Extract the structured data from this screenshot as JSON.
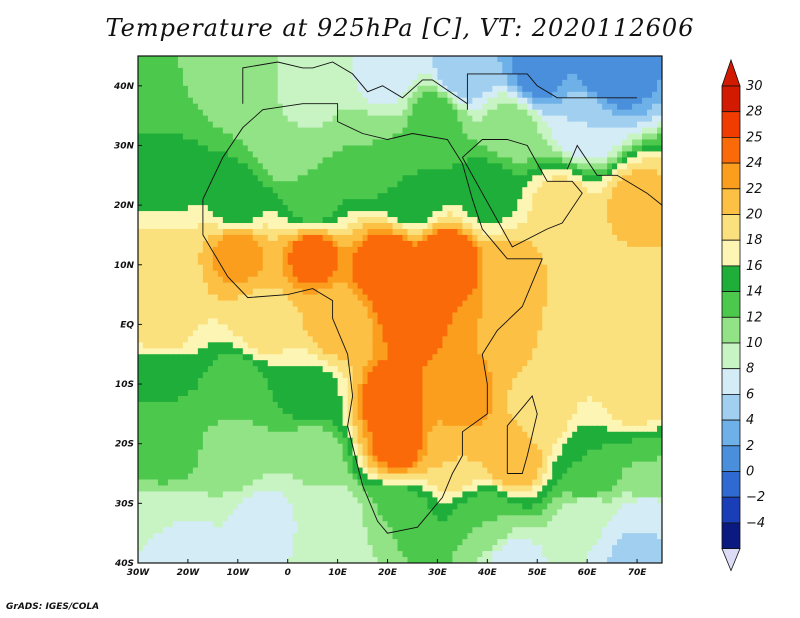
{
  "title": "Temperature at 925hPa [C], VT: 2020112606",
  "credit": "GrADS: IGES/COLA",
  "map": {
    "lon_range": [
      -30,
      75
    ],
    "lat_range": [
      -40,
      45
    ],
    "lon_ticks": [
      {
        "value": -30,
        "label": "30W"
      },
      {
        "value": -20,
        "label": "20W"
      },
      {
        "value": -10,
        "label": "10W"
      },
      {
        "value": 0,
        "label": "0"
      },
      {
        "value": 10,
        "label": "10E"
      },
      {
        "value": 20,
        "label": "20E"
      },
      {
        "value": 30,
        "label": "30E"
      },
      {
        "value": 40,
        "label": "40E"
      },
      {
        "value": 50,
        "label": "50E"
      },
      {
        "value": 60,
        "label": "60E"
      },
      {
        "value": 70,
        "label": "70E"
      }
    ],
    "lat_ticks": [
      {
        "value": 40,
        "label": "40N"
      },
      {
        "value": 30,
        "label": "30N"
      },
      {
        "value": 20,
        "label": "20N"
      },
      {
        "value": 10,
        "label": "10N"
      },
      {
        "value": 0,
        "label": "EQ"
      },
      {
        "value": -10,
        "label": "10S"
      },
      {
        "value": -20,
        "label": "20S"
      },
      {
        "value": -30,
        "label": "30S"
      },
      {
        "value": -40,
        "label": "40S"
      }
    ],
    "field": [
      {
        "lon": -25,
        "lat": 40,
        "v": 14
      },
      {
        "lon": -10,
        "lat": 40,
        "v": 13
      },
      {
        "lon": 5,
        "lat": 40,
        "v": 11
      },
      {
        "lon": 20,
        "lat": 42,
        "v": 9
      },
      {
        "lon": 35,
        "lat": 42,
        "v": 6
      },
      {
        "lon": 50,
        "lat": 42,
        "v": 3
      },
      {
        "lon": 65,
        "lat": 42,
        "v": 2
      },
      {
        "lon": 30,
        "lat": 35,
        "v": 15
      },
      {
        "lon": 45,
        "lat": 33,
        "v": 13
      },
      {
        "lon": 60,
        "lat": 33,
        "v": 8
      },
      {
        "lon": 0,
        "lat": 30,
        "v": 12
      },
      {
        "lon": 15,
        "lat": 28,
        "v": 14
      },
      {
        "lon": -25,
        "lat": 25,
        "v": 17
      },
      {
        "lon": -10,
        "lat": 20,
        "v": 17
      },
      {
        "lon": 5,
        "lat": 20,
        "v": 15
      },
      {
        "lon": 25,
        "lat": 22,
        "v": 16
      },
      {
        "lon": 40,
        "lat": 22,
        "v": 17
      },
      {
        "lon": 55,
        "lat": 20,
        "v": 21
      },
      {
        "lon": 70,
        "lat": 20,
        "v": 23
      },
      {
        "lon": -25,
        "lat": 10,
        "v": 21
      },
      {
        "lon": -10,
        "lat": 12,
        "v": 25
      },
      {
        "lon": 5,
        "lat": 12,
        "v": 26
      },
      {
        "lon": 20,
        "lat": 10,
        "v": 27
      },
      {
        "lon": 32,
        "lat": 10,
        "v": 28
      },
      {
        "lon": 45,
        "lat": 8,
        "v": 23
      },
      {
        "lon": 60,
        "lat": 8,
        "v": 21
      },
      {
        "lon": 70,
        "lat": 5,
        "v": 21
      },
      {
        "lon": -25,
        "lat": 0,
        "v": 21
      },
      {
        "lon": -5,
        "lat": 0,
        "v": 21
      },
      {
        "lon": 10,
        "lat": 0,
        "v": 23
      },
      {
        "lon": 25,
        "lat": 2,
        "v": 26
      },
      {
        "lon": 40,
        "lat": 0,
        "v": 24
      },
      {
        "lon": 60,
        "lat": -2,
        "v": 21
      },
      {
        "lon": -25,
        "lat": -10,
        "v": 16
      },
      {
        "lon": -10,
        "lat": -10,
        "v": 15
      },
      {
        "lon": 5,
        "lat": -12,
        "v": 17
      },
      {
        "lon": 20,
        "lat": -13,
        "v": 26
      },
      {
        "lon": 35,
        "lat": -13,
        "v": 25
      },
      {
        "lon": 50,
        "lat": -15,
        "v": 21
      },
      {
        "lon": 70,
        "lat": -12,
        "v": 21
      },
      {
        "lon": -25,
        "lat": -22,
        "v": 15
      },
      {
        "lon": -10,
        "lat": -22,
        "v": 13
      },
      {
        "lon": 5,
        "lat": -22,
        "v": 12
      },
      {
        "lon": 22,
        "lat": -20,
        "v": 26
      },
      {
        "lon": 34,
        "lat": -22,
        "v": 22
      },
      {
        "lon": 45,
        "lat": -22,
        "v": 24
      },
      {
        "lon": 60,
        "lat": -25,
        "v": 16
      },
      {
        "lon": 72,
        "lat": -25,
        "v": 14
      },
      {
        "lon": -25,
        "lat": -33,
        "v": 10
      },
      {
        "lon": -5,
        "lat": -33,
        "v": 9
      },
      {
        "lon": 10,
        "lat": -33,
        "v": 11
      },
      {
        "lon": 22,
        "lat": -32,
        "v": 14
      },
      {
        "lon": 40,
        "lat": -33,
        "v": 14
      },
      {
        "lon": 60,
        "lat": -33,
        "v": 10
      },
      {
        "lon": 72,
        "lat": -33,
        "v": 8
      },
      {
        "lon": -20,
        "lat": -40,
        "v": 9
      },
      {
        "lon": 10,
        "lat": -40,
        "v": 10
      },
      {
        "lon": 45,
        "lat": -40,
        "v": 9
      },
      {
        "lon": 70,
        "lat": -40,
        "v": 7
      }
    ]
  },
  "colorbar": {
    "levels": [
      {
        "label": "30",
        "color": "#d21a00"
      },
      {
        "label": "28",
        "color": "#f03c00"
      },
      {
        "label": "25",
        "color": "#fa6a08"
      },
      {
        "label": "24",
        "color": "#fb9e1e"
      },
      {
        "label": "22",
        "color": "#fcc045"
      },
      {
        "label": "20",
        "color": "#fbe07e"
      },
      {
        "label": "18",
        "color": "#fdf5b4"
      },
      {
        "label": "16",
        "color": "#1fae3a"
      },
      {
        "label": "14",
        "color": "#4cc84c"
      },
      {
        "label": "12",
        "color": "#92e286"
      },
      {
        "label": "10",
        "color": "#c8f4c4"
      },
      {
        "label": "8",
        "color": "#d4ecf6"
      },
      {
        "label": "6",
        "color": "#a0cff0"
      },
      {
        "label": "4",
        "color": "#6eb0e8"
      },
      {
        "label": "2",
        "color": "#4a8fdc"
      },
      {
        "label": "0",
        "color": "#2e6ad2"
      },
      {
        "label": "−2",
        "color": "#1a3eb8"
      },
      {
        "label": "−4",
        "color": "#0a1a80"
      }
    ],
    "top_color": "#d21a00",
    "bottom_color": "#dcdcf6"
  }
}
